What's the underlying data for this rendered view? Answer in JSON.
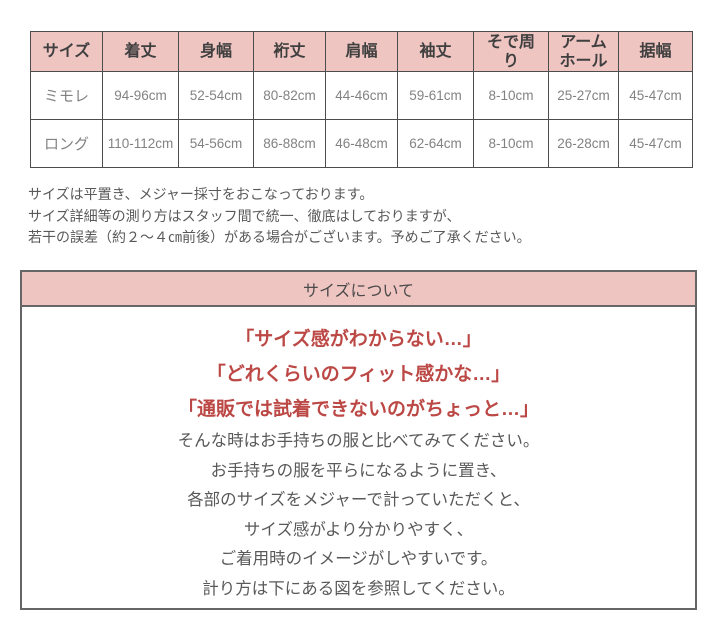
{
  "size_table": {
    "headers": [
      "サイズ",
      "着丈",
      "身幅",
      "裄丈",
      "肩幅",
      "袖丈",
      "そで周\nり",
      "アーム\nホール",
      "据幅"
    ],
    "rows": [
      {
        "label": "ミモレ",
        "values": [
          "94-96cm",
          "52-54cm",
          "80-82cm",
          "44-46cm",
          "59-61cm",
          "8-10cm",
          "25-27cm",
          "45-47cm"
        ]
      },
      {
        "label": "ロング",
        "values": [
          "110-112cm",
          "54-56cm",
          "86-88cm",
          "46-48cm",
          "62-64cm",
          "8-10cm",
          "26-28cm",
          "45-47cm"
        ]
      }
    ]
  },
  "notes": {
    "line1": "サイズは平置き、メジャー採寸をおこなっております。",
    "line2": "サイズ詳細等の測り方はスタッフ間で統一、徹底はしておりますが、",
    "line3": "若干の誤差（約２～４㎝前後）がある場合がございます。予めご了承ください。"
  },
  "about_box": {
    "title": "サイズについて",
    "highlight_lines": [
      "「サイズ感がわからない…」",
      "「どれくらいのフィット感かな…」",
      "「通販では試着できないのがちょっと…」"
    ],
    "body_lines": [
      "そんな時はお手持ちの服と比べてみてください。",
      "お手持ちの服を平らになるように置き、",
      "各部のサイズをメジャーで計っていただくと、",
      "サイズ感がより分かりやすく、",
      "ご着用時のイメージがしやすいです。",
      "計り方は下にある図を参照してください。"
    ]
  },
  "colors": {
    "pink": "#efc5c2",
    "red_text": "#bc4845",
    "border_dark": "#4d4d4d",
    "value_gray": "#828282",
    "note_gray": "#595959"
  }
}
